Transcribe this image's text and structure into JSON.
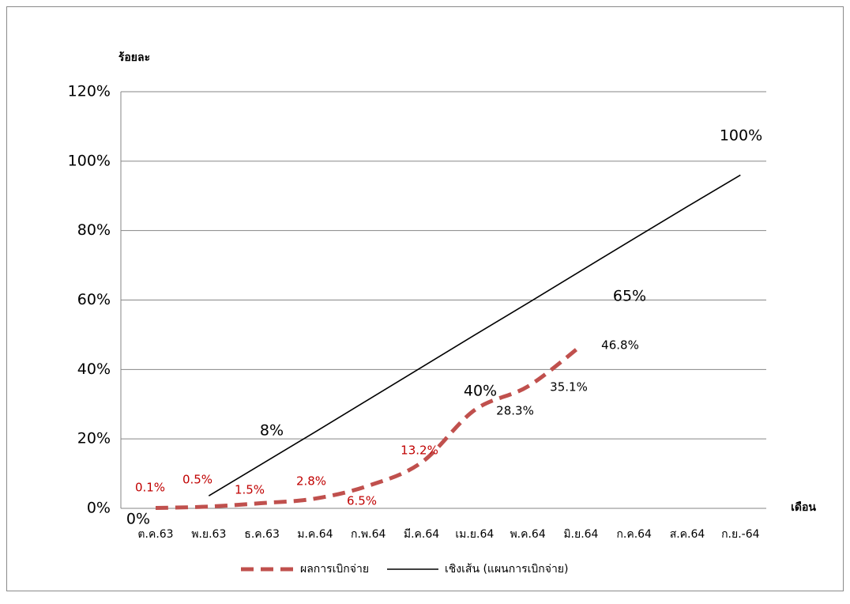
{
  "chart_data": {
    "type": "line",
    "y_axis_label": "ร้อยละ",
    "x_axis_label": "เดือน",
    "categories": [
      "ต.ค.63",
      "พ.ย.63",
      "ธ.ค.63",
      "ม.ค.64",
      "ก.พ.64",
      "มี.ค.64",
      "เม.ย.64",
      "พ.ค.64",
      "มิ.ย.64",
      "ก.ค.64",
      "ส.ค.64",
      "ก.ย.-64"
    ],
    "series": [
      {
        "name": "ผลการเบิกจ่าย",
        "color": "#c0504d",
        "dashed": true,
        "values": [
          0.1,
          0.5,
          1.5,
          2.8,
          6.5,
          13.2,
          28.3,
          35.1,
          46.8,
          null,
          null,
          null
        ],
        "value_labels": [
          "0.1%",
          "0.5%",
          "1.5%",
          "2.8%",
          "6.5%",
          "13.2%",
          "28.3%",
          "35.1%",
          "46.8%",
          null,
          null,
          null
        ]
      },
      {
        "name": "เชิงเส้น (แผนการเบิกจ่าย)",
        "color": "#000000",
        "dashed": false,
        "values": [
          null,
          3.6,
          12.8,
          22.0,
          31.3,
          40.6,
          49.9,
          59.1,
          68.4,
          77.7,
          86.9,
          96.0
        ]
      }
    ],
    "annotations": [
      "0%",
      "8%",
      "40%",
      "65%",
      "100%"
    ],
    "ylim": [
      0,
      120
    ],
    "yticks": [
      {
        "value": 0,
        "label": "0%"
      },
      {
        "value": 20,
        "label": "20%"
      },
      {
        "value": 40,
        "label": "40%"
      },
      {
        "value": 60,
        "label": "60%"
      },
      {
        "value": 80,
        "label": "80%"
      },
      {
        "value": 100,
        "label": "100%"
      },
      {
        "value": 120,
        "label": "120%"
      }
    ],
    "grid": true,
    "legend": "bottom"
  }
}
